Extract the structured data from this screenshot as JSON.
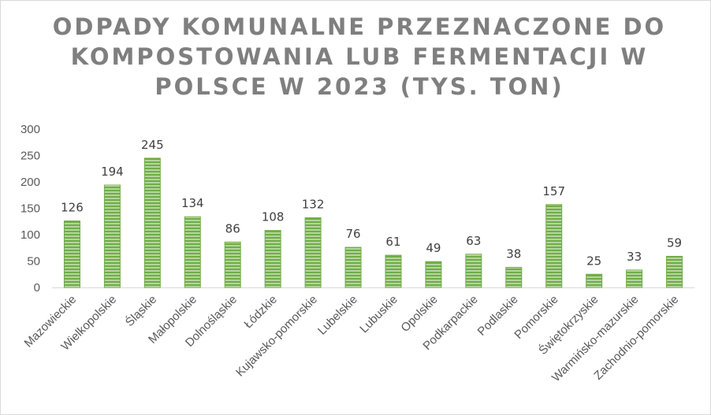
{
  "chart_data": {
    "type": "bar",
    "title": "ODPADY KOMUNALNE PRZEZNACZONE DO KOMPOSTOWANIA LUB FERMENTACJI W POLSCE W 2023 (TYS. TON)",
    "categories": [
      "Mazowieckie",
      "Wielkopolskie",
      "Śląskie",
      "Małopolskie",
      "Dolnośląskie",
      "Łódzkie",
      "Kujawsko-pomorskie",
      "Lubelskie",
      "Lubuskie",
      "Opolskie",
      "Podkarpackie",
      "Podlaskie",
      "Pomorskie",
      "Świętokrzyskie",
      "Warmińsko-mazurskie",
      "Zachodnio-pomorskie"
    ],
    "values": [
      126,
      194,
      245,
      134,
      86,
      108,
      132,
      76,
      61,
      49,
      63,
      38,
      157,
      25,
      33,
      59
    ],
    "ylim": [
      0,
      300
    ],
    "yticks": [
      0,
      50,
      100,
      150,
      200,
      250,
      300
    ],
    "grid": false,
    "legend": "none",
    "bar_color": "#70ad47",
    "bar_stripe_color": "#e2f0d9"
  }
}
